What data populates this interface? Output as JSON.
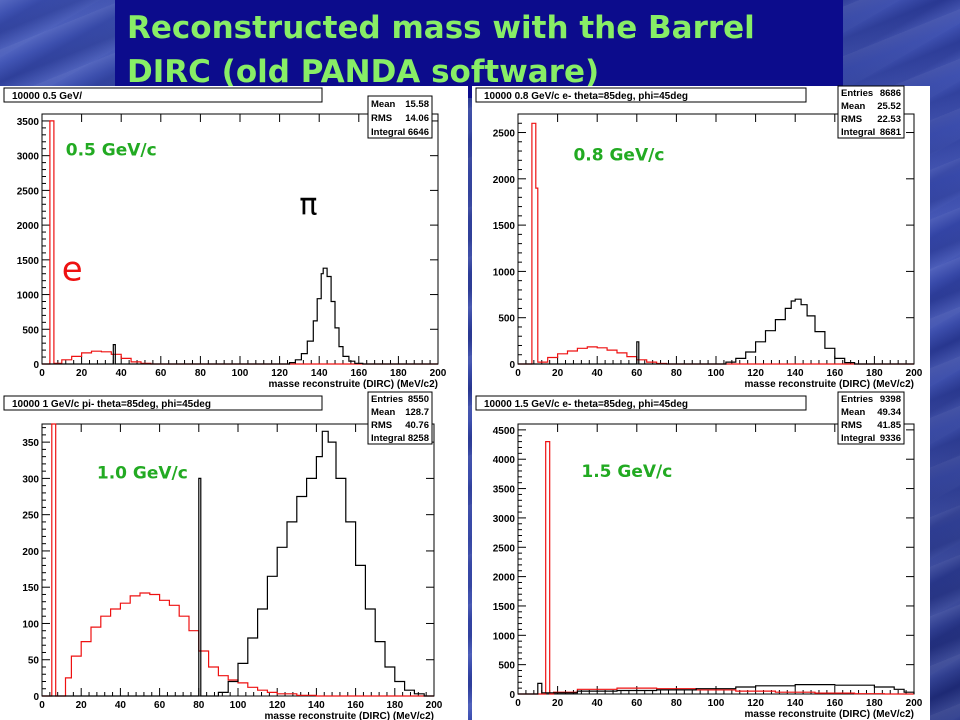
{
  "title": {
    "line1": "Reconstructed mass with the Barrel",
    "line2": "DIRC (old PANDA software)"
  },
  "colors": {
    "electron": "#ee1111",
    "pion": "#000000",
    "momentum_label": "#22aa22",
    "title_text": "#88ee66",
    "title_bg": "#0c0c8c"
  },
  "chart_data": [
    {
      "type": "histogram",
      "title": "10000 0.5 GeV/",
      "xlabel": "masse reconstruite (DIRC) (MeV/c2)",
      "xlim": [
        0,
        200
      ],
      "ylim": [
        0,
        3600
      ],
      "xticks": [
        0,
        20,
        40,
        60,
        80,
        100,
        120,
        140,
        160,
        180,
        200
      ],
      "yticks": [
        0,
        500,
        1000,
        1500,
        2000,
        2500,
        3000,
        3500
      ],
      "stats": [
        [
          "Mean",
          "15.58"
        ],
        [
          "RMS",
          "14.06"
        ],
        [
          "Integral",
          "6646"
        ]
      ],
      "annotations": [
        {
          "text": "0.5 GeV/c",
          "x": 12,
          "y": 3000
        },
        {
          "text": "e",
          "x": 10,
          "y": 1200,
          "color": "#ee1111"
        },
        {
          "text": "π",
          "x": 130,
          "y": 2150,
          "color": "#000000"
        }
      ],
      "series": [
        {
          "color": "#ee1111",
          "points": [
            [
              0,
              0
            ],
            [
              4,
              0
            ],
            [
              4,
              3500
            ],
            [
              6,
              3500
            ],
            [
              6,
              10
            ],
            [
              10,
              60
            ],
            [
              15,
              110
            ],
            [
              20,
              160
            ],
            [
              25,
              185
            ],
            [
              30,
              175
            ],
            [
              35,
              140
            ],
            [
              40,
              80
            ],
            [
              45,
              30
            ],
            [
              50,
              8
            ],
            [
              55,
              0
            ],
            [
              200,
              0
            ]
          ]
        },
        {
          "color": "#000000",
          "points": [
            [
              0,
              0
            ],
            [
              36,
              0
            ],
            [
              36,
              280
            ],
            [
              37,
              280
            ],
            [
              37,
              0
            ],
            [
              120,
              0
            ],
            [
              125,
              20
            ],
            [
              128,
              60
            ],
            [
              131,
              150
            ],
            [
              134,
              330
            ],
            [
              137,
              620
            ],
            [
              139,
              940
            ],
            [
              141,
              1300
            ],
            [
              142,
              1380
            ],
            [
              144,
              1260
            ],
            [
              146,
              900
            ],
            [
              148,
              520
            ],
            [
              150,
              250
            ],
            [
              152,
              110
            ],
            [
              155,
              40
            ],
            [
              158,
              10
            ],
            [
              162,
              0
            ],
            [
              200,
              0
            ]
          ]
        }
      ]
    },
    {
      "type": "histogram",
      "title": "10000 0.8 GeV/c e- theta=85deg, phi=45deg",
      "xlabel": "masse reconstruite (DIRC) (MeV/c2)",
      "xlim": [
        0,
        200
      ],
      "ylim": [
        0,
        2700
      ],
      "xticks": [
        0,
        20,
        40,
        60,
        80,
        100,
        120,
        140,
        160,
        180,
        200
      ],
      "yticks": [
        0,
        500,
        1000,
        1500,
        2000,
        2500
      ],
      "stats": [
        [
          "Entries",
          "8686"
        ],
        [
          "Mean",
          "25.52"
        ],
        [
          "RMS",
          "22.53"
        ],
        [
          "Integral",
          "8681"
        ]
      ],
      "annotations": [
        {
          "text": "0.8 GeV/c",
          "x": 28,
          "y": 2200
        }
      ],
      "series": [
        {
          "color": "#ee1111",
          "points": [
            [
              0,
              0
            ],
            [
              7,
              0
            ],
            [
              7,
              2600
            ],
            [
              9,
              2600
            ],
            [
              9,
              1900
            ],
            [
              10,
              1900
            ],
            [
              10,
              20
            ],
            [
              15,
              70
            ],
            [
              20,
              110
            ],
            [
              25,
              140
            ],
            [
              30,
              170
            ],
            [
              35,
              185
            ],
            [
              40,
              175
            ],
            [
              45,
              150
            ],
            [
              50,
              120
            ],
            [
              55,
              80
            ],
            [
              60,
              45
            ],
            [
              65,
              20
            ],
            [
              70,
              5
            ],
            [
              75,
              0
            ],
            [
              200,
              0
            ]
          ]
        },
        {
          "color": "#000000",
          "points": [
            [
              0,
              0
            ],
            [
              60,
              0
            ],
            [
              60,
              240
            ],
            [
              61,
              240
            ],
            [
              61,
              0
            ],
            [
              95,
              0
            ],
            [
              105,
              20
            ],
            [
              110,
              60
            ],
            [
              115,
              130
            ],
            [
              120,
              240
            ],
            [
              125,
              360
            ],
            [
              130,
              480
            ],
            [
              135,
              600
            ],
            [
              138,
              680
            ],
            [
              140,
              700
            ],
            [
              143,
              640
            ],
            [
              146,
              520
            ],
            [
              150,
              350
            ],
            [
              155,
              170
            ],
            [
              160,
              60
            ],
            [
              165,
              15
            ],
            [
              170,
              0
            ],
            [
              200,
              0
            ]
          ]
        }
      ]
    },
    {
      "type": "histogram",
      "title": "10000 1 GeV/c pi- theta=85deg, phi=45deg",
      "xlabel": "masse reconstruite (DIRC) (MeV/c2)",
      "xlim": [
        0,
        200
      ],
      "ylim": [
        0,
        375
      ],
      "xticks": [
        0,
        20,
        40,
        60,
        80,
        100,
        120,
        140,
        160,
        180,
        200
      ],
      "yticks": [
        0,
        50,
        100,
        150,
        200,
        250,
        300,
        350
      ],
      "stats": [
        [
          "Entries",
          "8550"
        ],
        [
          "Mean",
          "128.7"
        ],
        [
          "RMS",
          "40.76"
        ],
        [
          "Integral",
          "8258"
        ]
      ],
      "annotations": [
        {
          "text": "1.0 GeV/c",
          "x": 28,
          "y": 300
        }
      ],
      "series": [
        {
          "color": "#ee1111",
          "points": [
            [
              0,
              0
            ],
            [
              5,
              0
            ],
            [
              5,
              375
            ],
            [
              7,
              375
            ],
            [
              7,
              0
            ],
            [
              12,
              0
            ],
            [
              12,
              25
            ],
            [
              15,
              55
            ],
            [
              20,
              75
            ],
            [
              25,
              95
            ],
            [
              30,
              110
            ],
            [
              35,
              120
            ],
            [
              40,
              128
            ],
            [
              45,
              138
            ],
            [
              50,
              142
            ],
            [
              55,
              140
            ],
            [
              60,
              132
            ],
            [
              65,
              125
            ],
            [
              70,
              110
            ],
            [
              75,
              90
            ],
            [
              80,
              62
            ],
            [
              85,
              40
            ],
            [
              90,
              28
            ],
            [
              95,
              22
            ],
            [
              100,
              18
            ],
            [
              105,
              12
            ],
            [
              110,
              8
            ],
            [
              115,
              5
            ],
            [
              120,
              3
            ],
            [
              130,
              1
            ],
            [
              140,
              0
            ],
            [
              200,
              0
            ]
          ]
        },
        {
          "color": "#000000",
          "points": [
            [
              0,
              0
            ],
            [
              80,
              0
            ],
            [
              80,
              300
            ],
            [
              81,
              300
            ],
            [
              81,
              0
            ],
            [
              85,
              0
            ],
            [
              90,
              5
            ],
            [
              95,
              20
            ],
            [
              100,
              45
            ],
            [
              105,
              80
            ],
            [
              110,
              120
            ],
            [
              115,
              165
            ],
            [
              120,
              205
            ],
            [
              125,
              240
            ],
            [
              130,
              275
            ],
            [
              135,
              300
            ],
            [
              140,
              330
            ],
            [
              143,
              365
            ],
            [
              146,
              350
            ],
            [
              150,
              300
            ],
            [
              155,
              240
            ],
            [
              160,
              180
            ],
            [
              165,
              120
            ],
            [
              170,
              75
            ],
            [
              175,
              40
            ],
            [
              180,
              20
            ],
            [
              185,
              8
            ],
            [
              190,
              3
            ],
            [
              195,
              0
            ],
            [
              200,
              0
            ]
          ]
        }
      ]
    },
    {
      "type": "histogram",
      "title": "10000 1.5 GeV/c e- theta=85deg, phi=45deg",
      "xlabel": "masse reconstruite (DIRC) (MeV/c2)",
      "xlim": [
        0,
        200
      ],
      "ylim": [
        0,
        4600
      ],
      "xticks": [
        0,
        20,
        40,
        60,
        80,
        100,
        120,
        140,
        160,
        180,
        200
      ],
      "yticks": [
        0,
        500,
        1000,
        1500,
        2000,
        2500,
        3000,
        3500,
        4000,
        4500
      ],
      "stats": [
        [
          "Entries",
          "9398"
        ],
        [
          "Mean",
          "49.34"
        ],
        [
          "RMS",
          "41.85"
        ],
        [
          "Integral",
          "9336"
        ]
      ],
      "annotations": [
        {
          "text": "1.5 GeV/c",
          "x": 32,
          "y": 3700
        }
      ],
      "series": [
        {
          "color": "#ee1111",
          "points": [
            [
              0,
              0
            ],
            [
              14,
              0
            ],
            [
              14,
              4300
            ],
            [
              16,
              4300
            ],
            [
              16,
              0
            ],
            [
              18,
              30
            ],
            [
              30,
              80
            ],
            [
              50,
              100
            ],
            [
              70,
              90
            ],
            [
              90,
              70
            ],
            [
              110,
              50
            ],
            [
              130,
              30
            ],
            [
              150,
              15
            ],
            [
              170,
              5
            ],
            [
              185,
              0
            ],
            [
              200,
              0
            ]
          ]
        },
        {
          "color": "#000000",
          "points": [
            [
              0,
              0
            ],
            [
              10,
              0
            ],
            [
              10,
              180
            ],
            [
              12,
              180
            ],
            [
              12,
              20
            ],
            [
              30,
              50
            ],
            [
              50,
              60
            ],
            [
              70,
              70
            ],
            [
              90,
              90
            ],
            [
              110,
              120
            ],
            [
              120,
              140
            ],
            [
              140,
              160
            ],
            [
              160,
              150
            ],
            [
              180,
              120
            ],
            [
              190,
              80
            ],
            [
              195,
              30
            ],
            [
              200,
              0
            ]
          ]
        }
      ]
    }
  ]
}
